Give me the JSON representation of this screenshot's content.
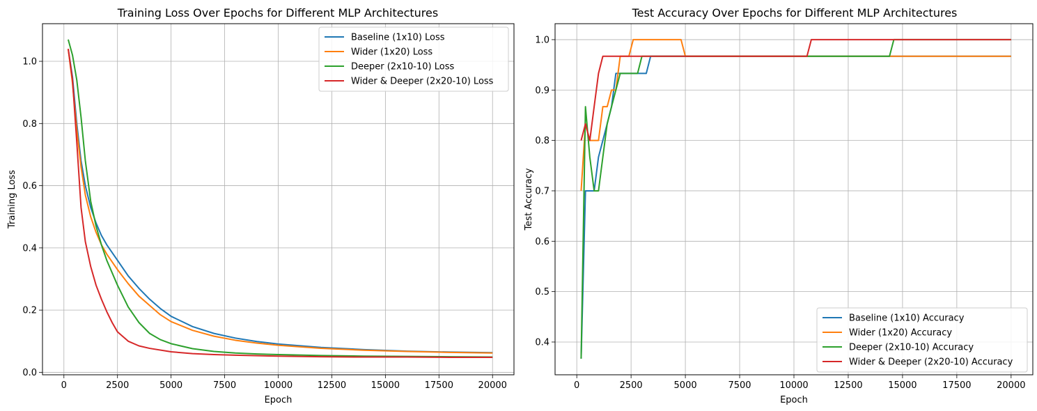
{
  "colors": {
    "baseline": "#1f77b4",
    "wider": "#ff7f0e",
    "deeper": "#2ca02c",
    "wider_deeper": "#d62728",
    "grid": "#b0b0b0"
  },
  "chart_data": [
    {
      "type": "line",
      "title": "Training Loss Over Epochs for Different MLP Architectures",
      "xlabel": "Epoch",
      "ylabel": "Training Loss",
      "xlim": [
        -1000,
        21000
      ],
      "ylim": [
        -0.008,
        1.121
      ],
      "xticks": [
        0,
        2500,
        5000,
        7500,
        10000,
        12500,
        15000,
        17500,
        20000
      ],
      "yticks": [
        0.0,
        0.2,
        0.4,
        0.6,
        0.8,
        1.0
      ],
      "xtick_labels": [
        "0",
        "2500",
        "5000",
        "7500",
        "10000",
        "12500",
        "15000",
        "17500",
        "20000"
      ],
      "ytick_labels": [
        "0.0",
        "0.2",
        "0.4",
        "0.6",
        "0.8",
        "1.0"
      ],
      "grid": true,
      "legend": "top-right",
      "series": [
        {
          "name": "Baseline (1x10) Loss",
          "color_key": "baseline",
          "x": [
            200,
            400,
            600,
            800,
            1000,
            1250,
            1500,
            1750,
            2000,
            2500,
            3000,
            3500,
            4000,
            4500,
            5000,
            6000,
            7000,
            8000,
            9000,
            10000,
            12000,
            14000,
            16000,
            18000,
            20000
          ],
          "y": [
            1.04,
            0.95,
            0.8,
            0.68,
            0.6,
            0.53,
            0.48,
            0.44,
            0.41,
            0.36,
            0.31,
            0.27,
            0.235,
            0.205,
            0.18,
            0.147,
            0.125,
            0.11,
            0.099,
            0.091,
            0.08,
            0.073,
            0.068,
            0.065,
            0.063
          ]
        },
        {
          "name": "Wider (1x20) Loss",
          "color_key": "wider",
          "x": [
            200,
            400,
            600,
            800,
            1000,
            1250,
            1500,
            1750,
            2000,
            2500,
            3000,
            3500,
            4000,
            4500,
            5000,
            6000,
            7000,
            8000,
            9000,
            10000,
            12000,
            14000,
            16000,
            18000,
            20000
          ],
          "y": [
            1.04,
            0.93,
            0.78,
            0.66,
            0.57,
            0.5,
            0.45,
            0.41,
            0.38,
            0.33,
            0.285,
            0.245,
            0.215,
            0.185,
            0.163,
            0.135,
            0.116,
            0.103,
            0.094,
            0.087,
            0.077,
            0.071,
            0.067,
            0.064,
            0.062
          ]
        },
        {
          "name": "Deeper (2x10-10) Loss",
          "color_key": "deeper",
          "x": [
            200,
            400,
            600,
            800,
            1000,
            1250,
            1500,
            1750,
            2000,
            2500,
            3000,
            3500,
            4000,
            4500,
            5000,
            6000,
            7000,
            8000,
            9000,
            10000,
            12000,
            14000,
            16000,
            18000,
            20000
          ],
          "y": [
            1.07,
            1.02,
            0.94,
            0.82,
            0.68,
            0.55,
            0.47,
            0.41,
            0.36,
            0.28,
            0.21,
            0.16,
            0.125,
            0.105,
            0.092,
            0.076,
            0.067,
            0.062,
            0.059,
            0.057,
            0.054,
            0.052,
            0.051,
            0.05,
            0.049
          ]
        },
        {
          "name": "Wider & Deeper (2x20-10) Loss",
          "color_key": "wider_deeper",
          "x": [
            200,
            400,
            600,
            800,
            1000,
            1250,
            1500,
            1750,
            2000,
            2250,
            2500,
            3000,
            3500,
            4000,
            5000,
            6000,
            7000,
            8000,
            10000,
            12000,
            14000,
            16000,
            18000,
            20000
          ],
          "y": [
            1.04,
            0.94,
            0.74,
            0.53,
            0.42,
            0.34,
            0.28,
            0.235,
            0.195,
            0.16,
            0.13,
            0.1,
            0.085,
            0.077,
            0.066,
            0.06,
            0.057,
            0.055,
            0.052,
            0.05,
            0.049,
            0.049,
            0.048,
            0.048
          ]
        }
      ]
    },
    {
      "type": "line",
      "title": "Test Accuracy Over Epochs for Different MLP Architectures",
      "xlabel": "Epoch",
      "ylabel": "Test Accuracy",
      "xlim": [
        -1000,
        21000
      ],
      "ylim": [
        0.335,
        1.0317
      ],
      "xticks": [
        0,
        2500,
        5000,
        7500,
        10000,
        12500,
        15000,
        17500,
        20000
      ],
      "yticks": [
        0.4,
        0.5,
        0.6,
        0.7,
        0.8,
        0.9,
        1.0
      ],
      "xtick_labels": [
        "0",
        "2500",
        "5000",
        "7500",
        "10000",
        "12500",
        "15000",
        "17500",
        "20000"
      ],
      "ytick_labels": [
        "0.4",
        "0.5",
        "0.6",
        "0.7",
        "0.8",
        "0.9",
        "1.0"
      ],
      "grid": true,
      "legend": "bottom-right",
      "series": [
        {
          "name": "Baseline (1x10) Accuracy",
          "color_key": "baseline",
          "x": [
            200,
            400,
            600,
            800,
            1000,
            1200,
            1400,
            1600,
            1800,
            2000,
            2200,
            2400,
            2600,
            2800,
            3000,
            3200,
            3400,
            3600,
            5000,
            10000,
            15000,
            20000
          ],
          "y": [
            0.367,
            0.7,
            0.7,
            0.7,
            0.767,
            0.8,
            0.833,
            0.867,
            0.933,
            0.933,
            0.933,
            0.933,
            0.933,
            0.933,
            0.933,
            0.933,
            0.967,
            0.967,
            0.967,
            0.967,
            0.967,
            0.967
          ]
        },
        {
          "name": "Wider (1x20) Accuracy",
          "color_key": "wider",
          "x": [
            200,
            400,
            600,
            800,
            1000,
            1200,
            1400,
            1600,
            1800,
            2000,
            2200,
            2400,
            2600,
            2800,
            3000,
            3500,
            4000,
            4500,
            4800,
            5000,
            10000,
            15000,
            20000
          ],
          "y": [
            0.7,
            0.833,
            0.8,
            0.8,
            0.8,
            0.867,
            0.867,
            0.9,
            0.9,
            0.967,
            0.967,
            0.967,
            1.0,
            1.0,
            1.0,
            1.0,
            1.0,
            1.0,
            1.0,
            0.967,
            0.967,
            0.967,
            0.967
          ]
        },
        {
          "name": "Deeper (2x10-10) Accuracy",
          "color_key": "deeper",
          "x": [
            200,
            400,
            600,
            800,
            1000,
            1200,
            1400,
            1600,
            1800,
            2000,
            2200,
            2400,
            2600,
            2800,
            3000,
            5000,
            10000,
            14400,
            14600,
            16000,
            20000
          ],
          "y": [
            0.367,
            0.867,
            0.767,
            0.7,
            0.7,
            0.767,
            0.833,
            0.867,
            0.9,
            0.933,
            0.933,
            0.933,
            0.933,
            0.933,
            0.967,
            0.967,
            0.967,
            0.967,
            1.0,
            1.0,
            1.0
          ]
        },
        {
          "name": "Wider & Deeper (2x20-10) Accuracy",
          "color_key": "wider_deeper",
          "x": [
            200,
            400,
            600,
            800,
            1000,
            1200,
            1400,
            2000,
            3000,
            5000,
            8000,
            10000,
            10600,
            10800,
            13000,
            16000,
            20000
          ],
          "y": [
            0.8,
            0.833,
            0.8,
            0.867,
            0.933,
            0.967,
            0.967,
            0.967,
            0.967,
            0.967,
            0.967,
            0.967,
            0.967,
            1.0,
            1.0,
            1.0,
            1.0
          ]
        }
      ]
    }
  ]
}
